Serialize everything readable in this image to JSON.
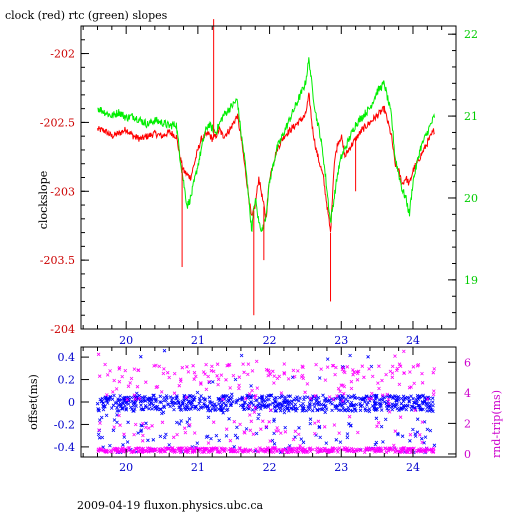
{
  "figure": {
    "title": "clock (red) rtc (green) slopes",
    "footer": "2009-04-19 fluxon.physics.ubc.ca"
  },
  "colors": {
    "clock": "#ff0000",
    "rtc": "#00ee00",
    "offset": "#0000ff",
    "rndtrip": "#ff00ff",
    "axes": "#000000",
    "right_axis_top": "#00cc00",
    "right_axis_bottom": "#cc00cc",
    "left_axis_bottom": "#0000cc",
    "left_axis_top": "#cc0000"
  },
  "chart_data": [
    {
      "type": "line",
      "title": "clock (red) rtc (green) slopes",
      "xlabel": "",
      "ylabel": "clockslope",
      "y2label": "",
      "xlim": [
        19.37,
        24.6
      ],
      "ylim": [
        -204,
        -201.8
      ],
      "y2lim": [
        18.4,
        22.1
      ],
      "xticks": [
        "20",
        "21",
        "22",
        "23",
        "24"
      ],
      "yticks": [
        "-202",
        "-202.5",
        "-203",
        "-203.5",
        "-204"
      ],
      "y2ticks": [
        "22",
        "21",
        "20",
        "19"
      ],
      "grid": false,
      "series": [
        {
          "name": "clock",
          "axis": "left",
          "x": [
            19.6,
            19.7,
            19.8,
            19.9,
            20.0,
            20.1,
            20.2,
            20.3,
            20.4,
            20.5,
            20.6,
            20.7,
            20.75,
            20.8,
            20.85,
            20.9,
            20.95,
            21.0,
            21.05,
            21.1,
            21.15,
            21.2,
            21.25,
            21.3,
            21.35,
            21.4,
            21.45,
            21.5,
            21.55,
            21.6,
            21.65,
            21.7,
            21.75,
            21.8,
            21.85,
            21.9,
            21.95,
            22.0,
            22.1,
            22.2,
            22.3,
            22.4,
            22.5,
            22.55,
            22.6,
            22.65,
            22.7,
            22.75,
            22.8,
            22.85,
            22.9,
            22.95,
            23.0,
            23.05,
            23.1,
            23.2,
            23.3,
            23.4,
            23.5,
            23.6,
            23.7,
            23.75,
            23.8,
            23.85,
            23.9,
            23.95,
            24.0,
            24.05,
            24.1,
            24.15,
            24.2,
            24.25,
            24.3
          ],
          "y": [
            -202.55,
            -202.56,
            -202.6,
            -202.58,
            -202.55,
            -202.6,
            -202.62,
            -202.6,
            -202.58,
            -202.6,
            -202.57,
            -202.6,
            -202.75,
            -202.85,
            -202.88,
            -202.9,
            -202.8,
            -202.7,
            -202.62,
            -202.6,
            -202.58,
            -202.62,
            -202.6,
            -202.55,
            -202.6,
            -202.58,
            -202.55,
            -202.5,
            -202.45,
            -202.6,
            -202.8,
            -203.0,
            -203.2,
            -203.1,
            -202.9,
            -203.05,
            -203.2,
            -202.9,
            -202.7,
            -202.6,
            -202.55,
            -202.5,
            -202.45,
            -202.3,
            -202.55,
            -202.7,
            -202.8,
            -202.9,
            -203.1,
            -203.3,
            -202.8,
            -202.65,
            -202.6,
            -202.75,
            -202.7,
            -202.62,
            -202.55,
            -202.5,
            -202.45,
            -202.4,
            -202.6,
            -202.8,
            -202.85,
            -202.95,
            -202.9,
            -202.95,
            -202.85,
            -202.8,
            -202.75,
            -202.7,
            -202.65,
            -202.6,
            -202.55
          ]
        },
        {
          "name": "rtc",
          "axis": "right",
          "x": [
            19.6,
            19.7,
            19.8,
            19.9,
            20.0,
            20.1,
            20.2,
            20.3,
            20.4,
            20.5,
            20.6,
            20.7,
            20.75,
            20.8,
            20.85,
            20.9,
            20.95,
            21.0,
            21.05,
            21.1,
            21.15,
            21.2,
            21.25,
            21.3,
            21.35,
            21.4,
            21.45,
            21.5,
            21.55,
            21.6,
            21.65,
            21.7,
            21.75,
            21.8,
            21.85,
            21.9,
            21.95,
            22.0,
            22.1,
            22.2,
            22.3,
            22.4,
            22.5,
            22.55,
            22.6,
            22.65,
            22.7,
            22.75,
            22.8,
            22.85,
            22.9,
            22.95,
            23.0,
            23.05,
            23.1,
            23.2,
            23.3,
            23.4,
            23.5,
            23.6,
            23.7,
            23.75,
            23.8,
            23.85,
            23.9,
            23.95,
            24.0,
            24.05,
            24.1,
            24.15,
            24.2,
            24.25,
            24.3
          ],
          "y": [
            21.1,
            21.05,
            21.0,
            21.05,
            20.98,
            21.0,
            20.95,
            20.9,
            20.95,
            20.92,
            20.88,
            20.9,
            20.5,
            20.2,
            19.9,
            20.0,
            20.2,
            20.4,
            20.6,
            20.8,
            20.9,
            20.85,
            20.8,
            20.9,
            21.0,
            21.05,
            21.1,
            21.15,
            21.2,
            20.8,
            20.5,
            20.1,
            19.6,
            20.0,
            19.7,
            19.6,
            19.8,
            20.2,
            20.6,
            20.8,
            21.0,
            21.2,
            21.4,
            21.7,
            21.3,
            21.0,
            20.8,
            20.5,
            20.1,
            19.7,
            20.0,
            20.3,
            20.5,
            20.6,
            20.7,
            20.9,
            21.0,
            21.1,
            21.3,
            21.4,
            21.0,
            20.5,
            20.3,
            20.1,
            20.0,
            19.8,
            20.2,
            20.4,
            20.6,
            20.7,
            20.8,
            20.9,
            21.0
          ]
        }
      ],
      "spikes": [
        {
          "x": 20.78,
          "y": -203.55
        },
        {
          "x": 21.22,
          "y": -201.75
        },
        {
          "x": 21.78,
          "y": -203.9
        },
        {
          "x": 21.92,
          "y": -203.5
        },
        {
          "x": 22.85,
          "y": -203.8
        },
        {
          "x": 23.2,
          "y": -203.0
        }
      ]
    },
    {
      "type": "scatter",
      "title": "",
      "xlabel": "",
      "ylabel": "offset(ms)",
      "y2label": "rnd-trip(ms)",
      "xlim": [
        19.37,
        24.6
      ],
      "ylim": [
        -0.49,
        0.49
      ],
      "y2lim": [
        -0.2,
        7.0
      ],
      "xticks": [
        "20",
        "21",
        "22",
        "23",
        "24"
      ],
      "yticks": [
        "0.4",
        "0.2",
        "0",
        "-0.2",
        "-0.4"
      ],
      "y2ticks": [
        "6",
        "4",
        "2",
        "0"
      ],
      "grid": false,
      "series": [
        {
          "name": "offset",
          "axis": "left",
          "x_range": [
            19.6,
            24.3
          ],
          "band": [
            -0.08,
            0.06
          ],
          "outlier_range": [
            -0.45,
            0.47
          ]
        },
        {
          "name": "rnd-trip",
          "axis": "right",
          "x_range": [
            19.6,
            24.3
          ],
          "band": [
            0.1,
            0.4
          ],
          "outlier_range": [
            0.5,
            6.8
          ]
        }
      ]
    }
  ]
}
